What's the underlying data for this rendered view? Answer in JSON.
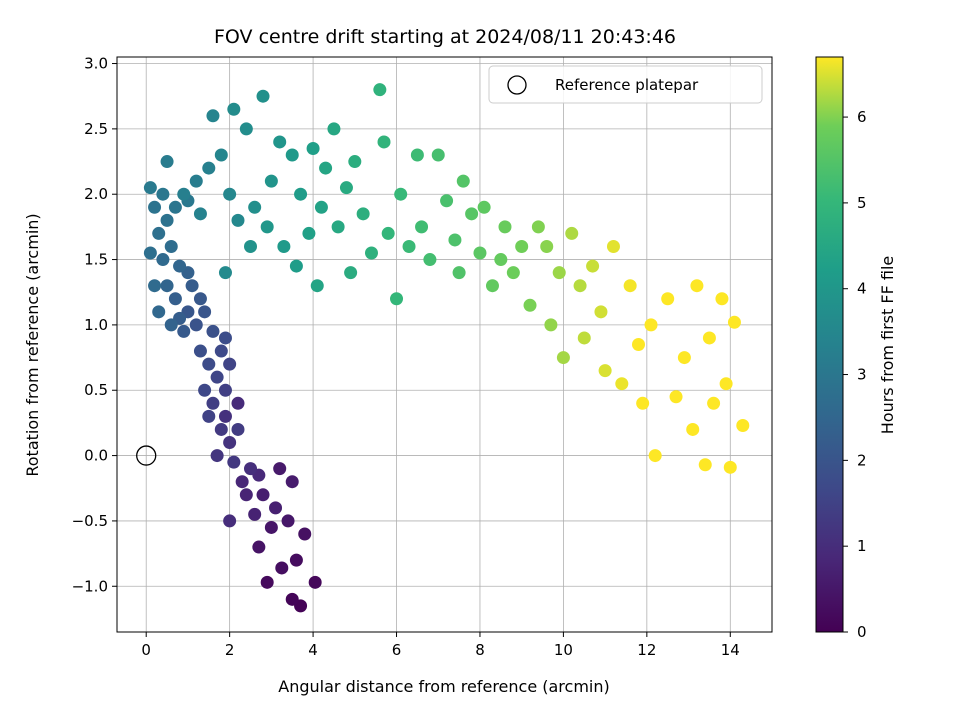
{
  "chart_data": {
    "type": "scatter",
    "title": "FOV centre drift starting at 2024/08/11 20:43:46",
    "xlabel": "Angular distance from reference (arcmin)",
    "ylabel": "Rotation from reference (arcmin)",
    "xlim": [
      -0.7,
      15.0
    ],
    "ylim": [
      -1.35,
      3.05
    ],
    "x_ticks": [
      0,
      2,
      4,
      6,
      8,
      10,
      12,
      14
    ],
    "y_ticks": [
      -1.0,
      -0.5,
      0.0,
      0.5,
      1.0,
      1.5,
      2.0,
      2.5,
      3.0
    ],
    "x_tick_labels": [
      "0",
      "2",
      "4",
      "6",
      "8",
      "10",
      "12",
      "14"
    ],
    "y_tick_labels": [
      "−1.0",
      "−0.5",
      "0.0",
      "0.5",
      "1.0",
      "1.5",
      "2.0",
      "2.5",
      "3.0"
    ],
    "grid": true,
    "colormap": "viridis",
    "colorbar": {
      "label": "Hours from first FF file",
      "range": [
        0,
        6.7
      ],
      "ticks": [
        0,
        1,
        2,
        3,
        4,
        5,
        6
      ],
      "tick_labels": [
        "0",
        "1",
        "2",
        "3",
        "4",
        "5",
        "6"
      ]
    },
    "legend": {
      "position": "top-right",
      "entries": [
        {
          "label": "Reference platepar",
          "marker": "open-circle"
        }
      ]
    },
    "reference_point": {
      "x": 0.0,
      "y": 0.0
    },
    "series": [
      {
        "color_by": "Hours from first FF file",
        "points": [
          [
            3.7,
            -1.15,
            0.05
          ],
          [
            3.5,
            -1.1,
            0.1
          ],
          [
            4.05,
            -0.97,
            0.15
          ],
          [
            2.9,
            -0.97,
            0.2
          ],
          [
            3.6,
            -0.8,
            0.25
          ],
          [
            3.25,
            -0.86,
            0.3
          ],
          [
            3.8,
            -0.6,
            0.35
          ],
          [
            2.7,
            -0.7,
            0.4
          ],
          [
            3.0,
            -0.55,
            0.45
          ],
          [
            3.4,
            -0.5,
            0.5
          ],
          [
            3.2,
            -0.1,
            0.55
          ],
          [
            3.5,
            -0.2,
            0.6
          ],
          [
            2.8,
            -0.3,
            0.65
          ],
          [
            3.1,
            -0.4,
            0.7
          ],
          [
            2.6,
            -0.45,
            0.75
          ],
          [
            2.4,
            -0.3,
            0.8
          ],
          [
            2.3,
            -0.2,
            0.85
          ],
          [
            2.7,
            -0.15,
            0.9
          ],
          [
            2.2,
            0.4,
            0.95
          ],
          [
            2.0,
            -0.5,
            1.0
          ],
          [
            2.5,
            -0.1,
            1.05
          ],
          [
            1.9,
            0.3,
            1.1
          ],
          [
            2.0,
            0.1,
            1.15
          ],
          [
            1.7,
            0.0,
            1.2
          ],
          [
            2.1,
            -0.05,
            1.25
          ],
          [
            1.8,
            0.2,
            1.3
          ],
          [
            2.2,
            0.2,
            1.35
          ],
          [
            1.6,
            0.4,
            1.4
          ],
          [
            1.9,
            0.5,
            1.45
          ],
          [
            1.5,
            0.3,
            1.5
          ],
          [
            2.0,
            0.7,
            1.55
          ],
          [
            1.7,
            0.6,
            1.6
          ],
          [
            1.4,
            0.5,
            1.65
          ],
          [
            1.8,
            0.8,
            1.7
          ],
          [
            1.5,
            0.7,
            1.75
          ],
          [
            1.9,
            0.9,
            1.8
          ],
          [
            1.3,
            0.8,
            1.85
          ],
          [
            1.6,
            0.95,
            1.9
          ],
          [
            1.2,
            1.0,
            1.95
          ],
          [
            1.4,
            1.1,
            2.0
          ],
          [
            1.0,
            1.1,
            2.05
          ],
          [
            1.3,
            1.2,
            2.1
          ],
          [
            0.9,
            0.95,
            2.15
          ],
          [
            1.1,
            1.3,
            2.2
          ],
          [
            0.8,
            1.05,
            2.25
          ],
          [
            0.7,
            1.2,
            2.3
          ],
          [
            1.0,
            1.4,
            2.35
          ],
          [
            0.6,
            1.0,
            2.4
          ],
          [
            0.5,
            1.3,
            2.45
          ],
          [
            0.8,
            1.45,
            2.5
          ],
          [
            0.3,
            1.1,
            2.55
          ],
          [
            0.4,
            1.5,
            2.6
          ],
          [
            0.2,
            1.3,
            2.65
          ],
          [
            0.6,
            1.6,
            2.7
          ],
          [
            0.1,
            1.55,
            2.75
          ],
          [
            0.3,
            1.7,
            2.8
          ],
          [
            0.5,
            1.8,
            2.85
          ],
          [
            0.2,
            1.9,
            2.9
          ],
          [
            0.7,
            1.9,
            2.95
          ],
          [
            0.4,
            2.0,
            3.0
          ],
          [
            1.0,
            1.95,
            3.05
          ],
          [
            0.1,
            2.05,
            3.1
          ],
          [
            0.5,
            2.25,
            3.15
          ],
          [
            1.2,
            2.1,
            3.2
          ],
          [
            0.9,
            2.0,
            3.25
          ],
          [
            1.5,
            2.2,
            3.3
          ],
          [
            1.3,
            1.85,
            3.35
          ],
          [
            1.6,
            2.6,
            3.4
          ],
          [
            1.8,
            2.3,
            3.45
          ],
          [
            2.0,
            2.0,
            3.5
          ],
          [
            2.2,
            1.8,
            3.55
          ],
          [
            1.9,
            1.4,
            3.6
          ],
          [
            2.1,
            2.65,
            3.65
          ],
          [
            2.4,
            2.5,
            3.7
          ],
          [
            2.6,
            1.9,
            3.75
          ],
          [
            2.8,
            2.75,
            3.8
          ],
          [
            2.5,
            1.6,
            3.85
          ],
          [
            3.0,
            2.1,
            3.9
          ],
          [
            3.2,
            2.4,
            3.95
          ],
          [
            2.9,
            1.75,
            4.0
          ],
          [
            3.5,
            2.3,
            4.05
          ],
          [
            3.3,
            1.6,
            4.1
          ],
          [
            3.7,
            2.0,
            4.15
          ],
          [
            3.6,
            1.45,
            4.2
          ],
          [
            4.0,
            2.35,
            4.25
          ],
          [
            3.9,
            1.7,
            4.3
          ],
          [
            4.2,
            1.9,
            4.35
          ],
          [
            4.1,
            1.3,
            4.4
          ],
          [
            4.3,
            2.2,
            4.45
          ],
          [
            4.5,
            2.5,
            4.5
          ],
          [
            4.6,
            1.75,
            4.55
          ],
          [
            4.8,
            2.05,
            4.6
          ],
          [
            4.9,
            1.4,
            4.65
          ],
          [
            5.0,
            2.25,
            4.7
          ],
          [
            5.2,
            1.85,
            4.75
          ],
          [
            5.4,
            1.55,
            4.8
          ],
          [
            5.6,
            2.8,
            4.85
          ],
          [
            5.7,
            2.4,
            4.9
          ],
          [
            5.8,
            1.7,
            4.95
          ],
          [
            6.0,
            1.2,
            5.0
          ],
          [
            6.1,
            2.0,
            5.05
          ],
          [
            6.3,
            1.6,
            5.1
          ],
          [
            6.5,
            2.3,
            5.15
          ],
          [
            6.6,
            1.75,
            5.2
          ],
          [
            6.8,
            1.5,
            5.25
          ],
          [
            7.0,
            2.3,
            5.3
          ],
          [
            7.2,
            1.95,
            5.35
          ],
          [
            7.4,
            1.65,
            5.4
          ],
          [
            7.5,
            1.4,
            5.45
          ],
          [
            7.6,
            2.1,
            5.5
          ],
          [
            7.8,
            1.85,
            5.55
          ],
          [
            8.0,
            1.55,
            5.6
          ],
          [
            8.1,
            1.9,
            5.65
          ],
          [
            8.3,
            1.3,
            5.7
          ],
          [
            8.5,
            1.5,
            5.75
          ],
          [
            8.6,
            1.75,
            5.8
          ],
          [
            8.8,
            1.4,
            5.85
          ],
          [
            9.0,
            1.6,
            5.9
          ],
          [
            9.2,
            1.15,
            5.95
          ],
          [
            9.4,
            1.75,
            6.0
          ],
          [
            9.6,
            1.6,
            6.05
          ],
          [
            9.7,
            1.0,
            6.1
          ],
          [
            9.9,
            1.4,
            6.15
          ],
          [
            10.0,
            0.75,
            6.2
          ],
          [
            10.2,
            1.7,
            6.25
          ],
          [
            10.4,
            1.3,
            6.3
          ],
          [
            10.5,
            0.9,
            6.35
          ],
          [
            10.7,
            1.45,
            6.4
          ],
          [
            10.9,
            1.1,
            6.45
          ],
          [
            11.0,
            0.65,
            6.5
          ],
          [
            11.2,
            1.6,
            6.55
          ],
          [
            11.4,
            0.55,
            6.6
          ],
          [
            11.6,
            1.3,
            6.65
          ],
          [
            11.8,
            0.85,
            6.7
          ],
          [
            11.9,
            0.4,
            6.72
          ],
          [
            12.1,
            1.0,
            6.74
          ],
          [
            12.2,
            0.0,
            6.76
          ],
          [
            12.5,
            1.2,
            6.78
          ],
          [
            12.7,
            0.45,
            6.8
          ],
          [
            12.9,
            0.75,
            6.82
          ],
          [
            13.1,
            0.2,
            6.84
          ],
          [
            13.2,
            1.3,
            6.86
          ],
          [
            13.4,
            -0.07,
            6.88
          ],
          [
            13.5,
            0.9,
            6.9
          ],
          [
            13.6,
            0.4,
            6.92
          ],
          [
            13.8,
            1.2,
            6.94
          ],
          [
            13.9,
            0.55,
            6.96
          ],
          [
            14.0,
            -0.09,
            6.98
          ],
          [
            14.1,
            1.02,
            7.0
          ],
          [
            14.3,
            0.23,
            7.0
          ]
        ]
      }
    ]
  }
}
